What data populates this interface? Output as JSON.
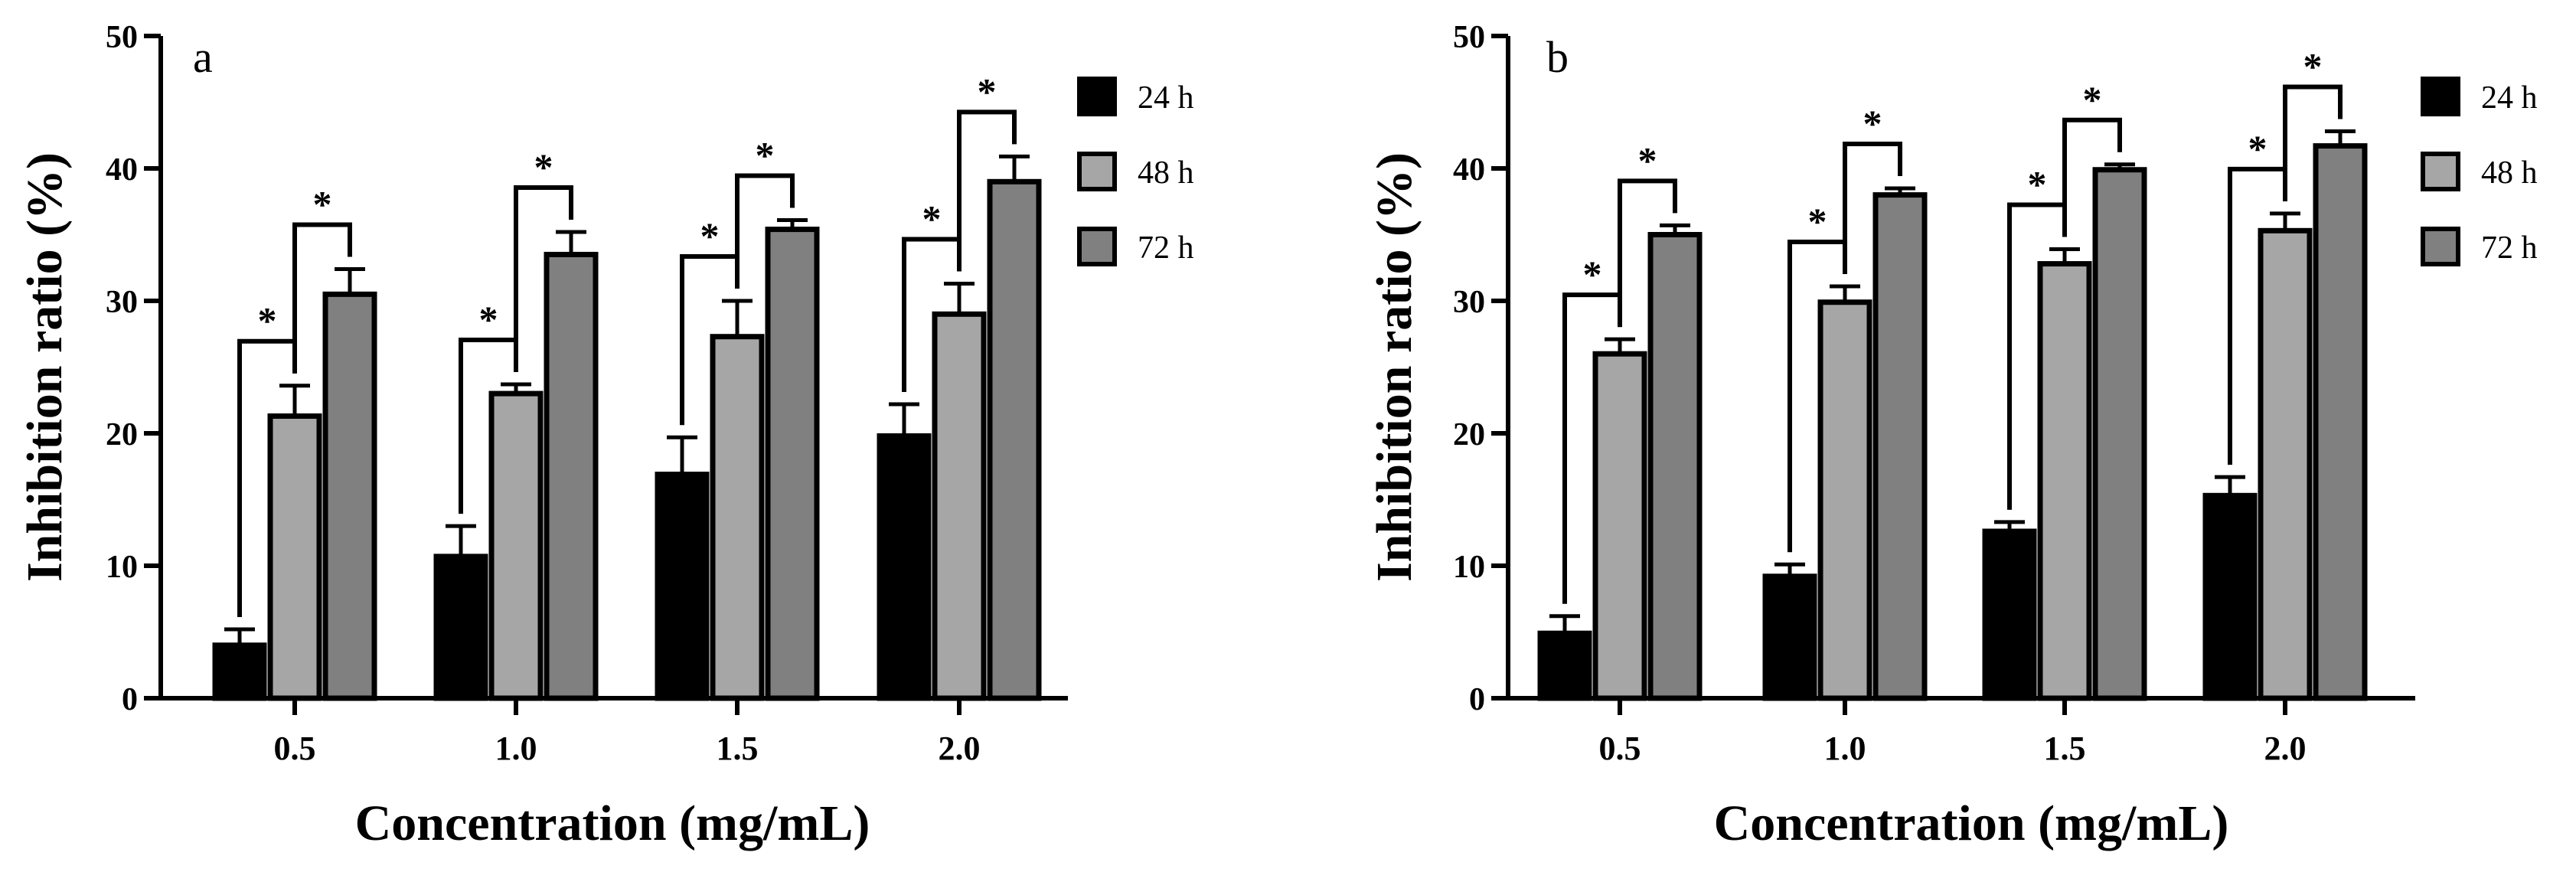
{
  "chart_data": [
    {
      "type": "bar",
      "panel_label": "a",
      "categories": [
        "0.5",
        "1.0",
        "1.5",
        "2.0"
      ],
      "series": [
        {
          "name": "24 h",
          "color": "#000000",
          "values": [
            4.0,
            10.7,
            16.9,
            19.8
          ],
          "errors": [
            1.2,
            2.3,
            2.8,
            2.4
          ]
        },
        {
          "name": "48 h",
          "color": "#a6a6a6",
          "values": [
            21.3,
            23.0,
            27.3,
            29.0
          ],
          "errors": [
            2.3,
            0.7,
            2.7,
            2.3
          ]
        },
        {
          "name": "72 h",
          "color": "#808080",
          "values": [
            30.5,
            33.5,
            35.4,
            39.0
          ],
          "errors": [
            1.9,
            1.7,
            0.7,
            1.9
          ]
        }
      ],
      "significance": [
        {
          "category": 0,
          "from": 0,
          "to": 1,
          "label": "*"
        },
        {
          "category": 0,
          "from": 1,
          "to": 2,
          "label": "*"
        },
        {
          "category": 1,
          "from": 0,
          "to": 1,
          "label": "*"
        },
        {
          "category": 1,
          "from": 1,
          "to": 2,
          "label": "*"
        },
        {
          "category": 2,
          "from": 0,
          "to": 1,
          "label": "*"
        },
        {
          "category": 2,
          "from": 1,
          "to": 2,
          "label": "*"
        },
        {
          "category": 3,
          "from": 0,
          "to": 1,
          "label": "*"
        },
        {
          "category": 3,
          "from": 1,
          "to": 2,
          "label": "*"
        }
      ],
      "yticks": [
        "0",
        "10",
        "20",
        "30",
        "40",
        "50"
      ],
      "ylim": [
        0,
        50
      ],
      "xlabel": "Concentration (mg/mL)",
      "ylabel": "Inhibition ratio (%)"
    },
    {
      "type": "bar",
      "panel_label": "b",
      "categories": [
        "0.5",
        "1.0",
        "1.5",
        "2.0"
      ],
      "series": [
        {
          "name": "24 h",
          "color": "#000000",
          "values": [
            4.9,
            9.2,
            12.6,
            15.3
          ],
          "errors": [
            1.3,
            0.9,
            0.7,
            1.4
          ]
        },
        {
          "name": "48 h",
          "color": "#a6a6a6",
          "values": [
            26.0,
            29.9,
            32.8,
            35.3
          ],
          "errors": [
            1.1,
            1.2,
            1.1,
            1.3
          ]
        },
        {
          "name": "72 h",
          "color": "#808080",
          "values": [
            35.0,
            38.0,
            39.9,
            41.7
          ],
          "errors": [
            0.7,
            0.5,
            0.4,
            1.1
          ]
        }
      ],
      "significance": [
        {
          "category": 0,
          "from": 0,
          "to": 1,
          "label": "*"
        },
        {
          "category": 0,
          "from": 1,
          "to": 2,
          "label": "*"
        },
        {
          "category": 1,
          "from": 0,
          "to": 1,
          "label": "*"
        },
        {
          "category": 1,
          "from": 1,
          "to": 2,
          "label": "*"
        },
        {
          "category": 2,
          "from": 0,
          "to": 1,
          "label": "*"
        },
        {
          "category": 2,
          "from": 1,
          "to": 2,
          "label": "*"
        },
        {
          "category": 3,
          "from": 0,
          "to": 1,
          "label": "*"
        },
        {
          "category": 3,
          "from": 1,
          "to": 2,
          "label": "*"
        }
      ],
      "yticks": [
        "0",
        "10",
        "20",
        "30",
        "40",
        "50"
      ],
      "ylim": [
        0,
        50
      ],
      "xlabel": "Concentration (mg/mL)",
      "ylabel": "Inhibition ratio (%)"
    }
  ]
}
